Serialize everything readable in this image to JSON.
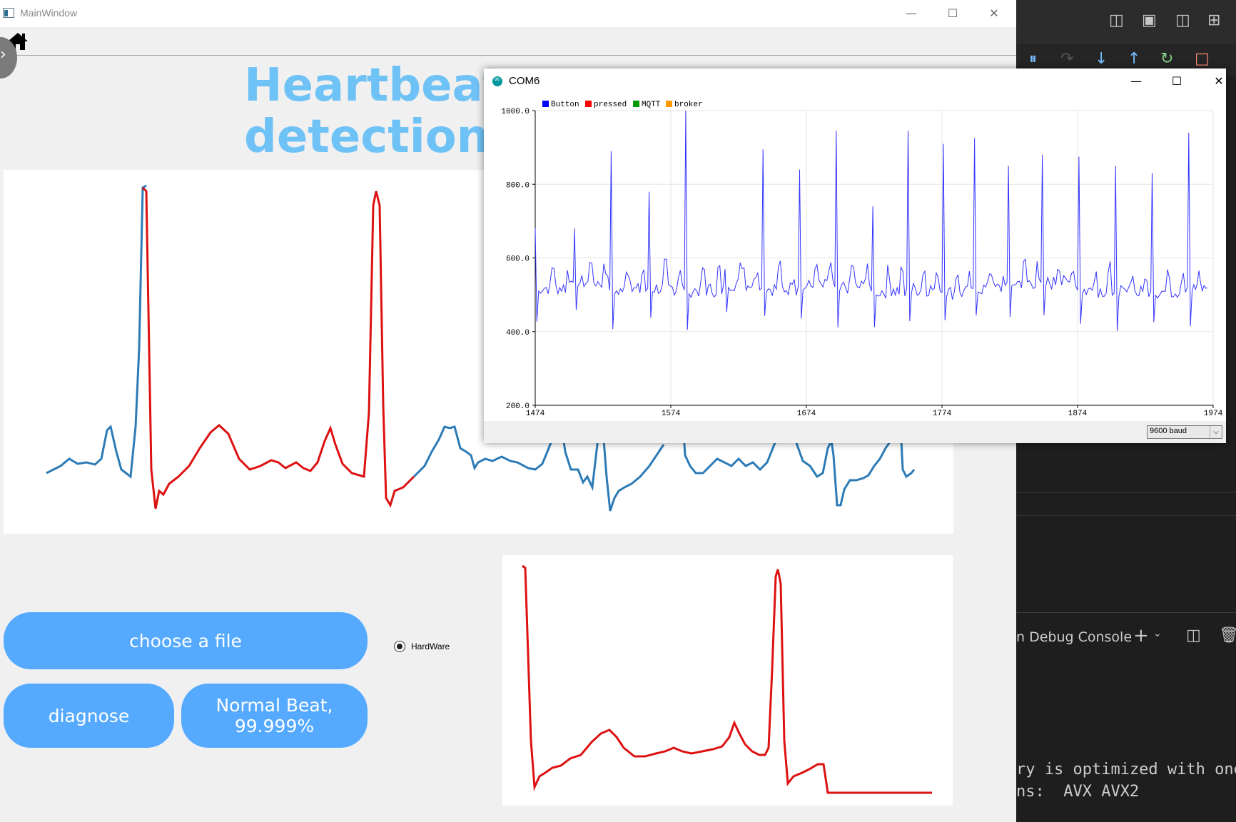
{
  "main_window": {
    "title": "MainWindow",
    "heading_line1": "Heartbeat a",
    "heading_line2": "detection fi",
    "buttons": {
      "choose_file": "choose a file",
      "diagnose": "diagnose",
      "result": "Normal Beat, 99.999%"
    },
    "radio": {
      "label": "HardWare",
      "checked": true
    }
  },
  "serial_plotter": {
    "title": "COM6",
    "baud": "9600 baud",
    "chart_data": {
      "type": "line",
      "legend": [
        {
          "name": "Button",
          "color": "#0000ff"
        },
        {
          "name": "pressed",
          "color": "#ff0000"
        },
        {
          "name": "MQTT",
          "color": "#009900"
        },
        {
          "name": "broker",
          "color": "#ff9900"
        }
      ],
      "x_ticks": [
        "1474",
        "1574",
        "1674",
        "1774",
        "1874",
        "1974"
      ],
      "y_ticks": [
        "1000.0",
        "800.0",
        "600.0",
        "400.0",
        "200.0"
      ],
      "xlim": [
        1474,
        1974
      ],
      "ylim": [
        200,
        1000
      ],
      "series_color": "#3333ff",
      "r_peaks": [
        {
          "x": 1474,
          "y": 680
        },
        {
          "x": 1503,
          "y": 680
        },
        {
          "x": 1530,
          "y": 890
        },
        {
          "x": 1558,
          "y": 780
        },
        {
          "x": 1585,
          "y": 1000
        },
        {
          "x": 1614,
          "y": 570
        },
        {
          "x": 1642,
          "y": 895
        },
        {
          "x": 1669,
          "y": 840
        },
        {
          "x": 1696,
          "y": 945
        },
        {
          "x": 1723,
          "y": 740
        },
        {
          "x": 1749,
          "y": 945
        },
        {
          "x": 1775,
          "y": 910
        },
        {
          "x": 1798,
          "y": 925
        },
        {
          "x": 1823,
          "y": 850
        },
        {
          "x": 1848,
          "y": 880
        },
        {
          "x": 1875,
          "y": 875
        },
        {
          "x": 1902,
          "y": 850
        },
        {
          "x": 1929,
          "y": 830
        },
        {
          "x": 1956,
          "y": 940
        }
      ],
      "baseline": 520
    }
  },
  "ecg_main_plot": {
    "colors": {
      "normal": "#2c7bb6",
      "highlight": "#dd1111"
    }
  },
  "ecg_small_plot": {
    "color": "#dd1111"
  },
  "vscode": {
    "panel_label": "n Debug Console",
    "terminal_lines": [
      "ry is optimized with one",
      "ns:  AVX AVX2"
    ]
  }
}
